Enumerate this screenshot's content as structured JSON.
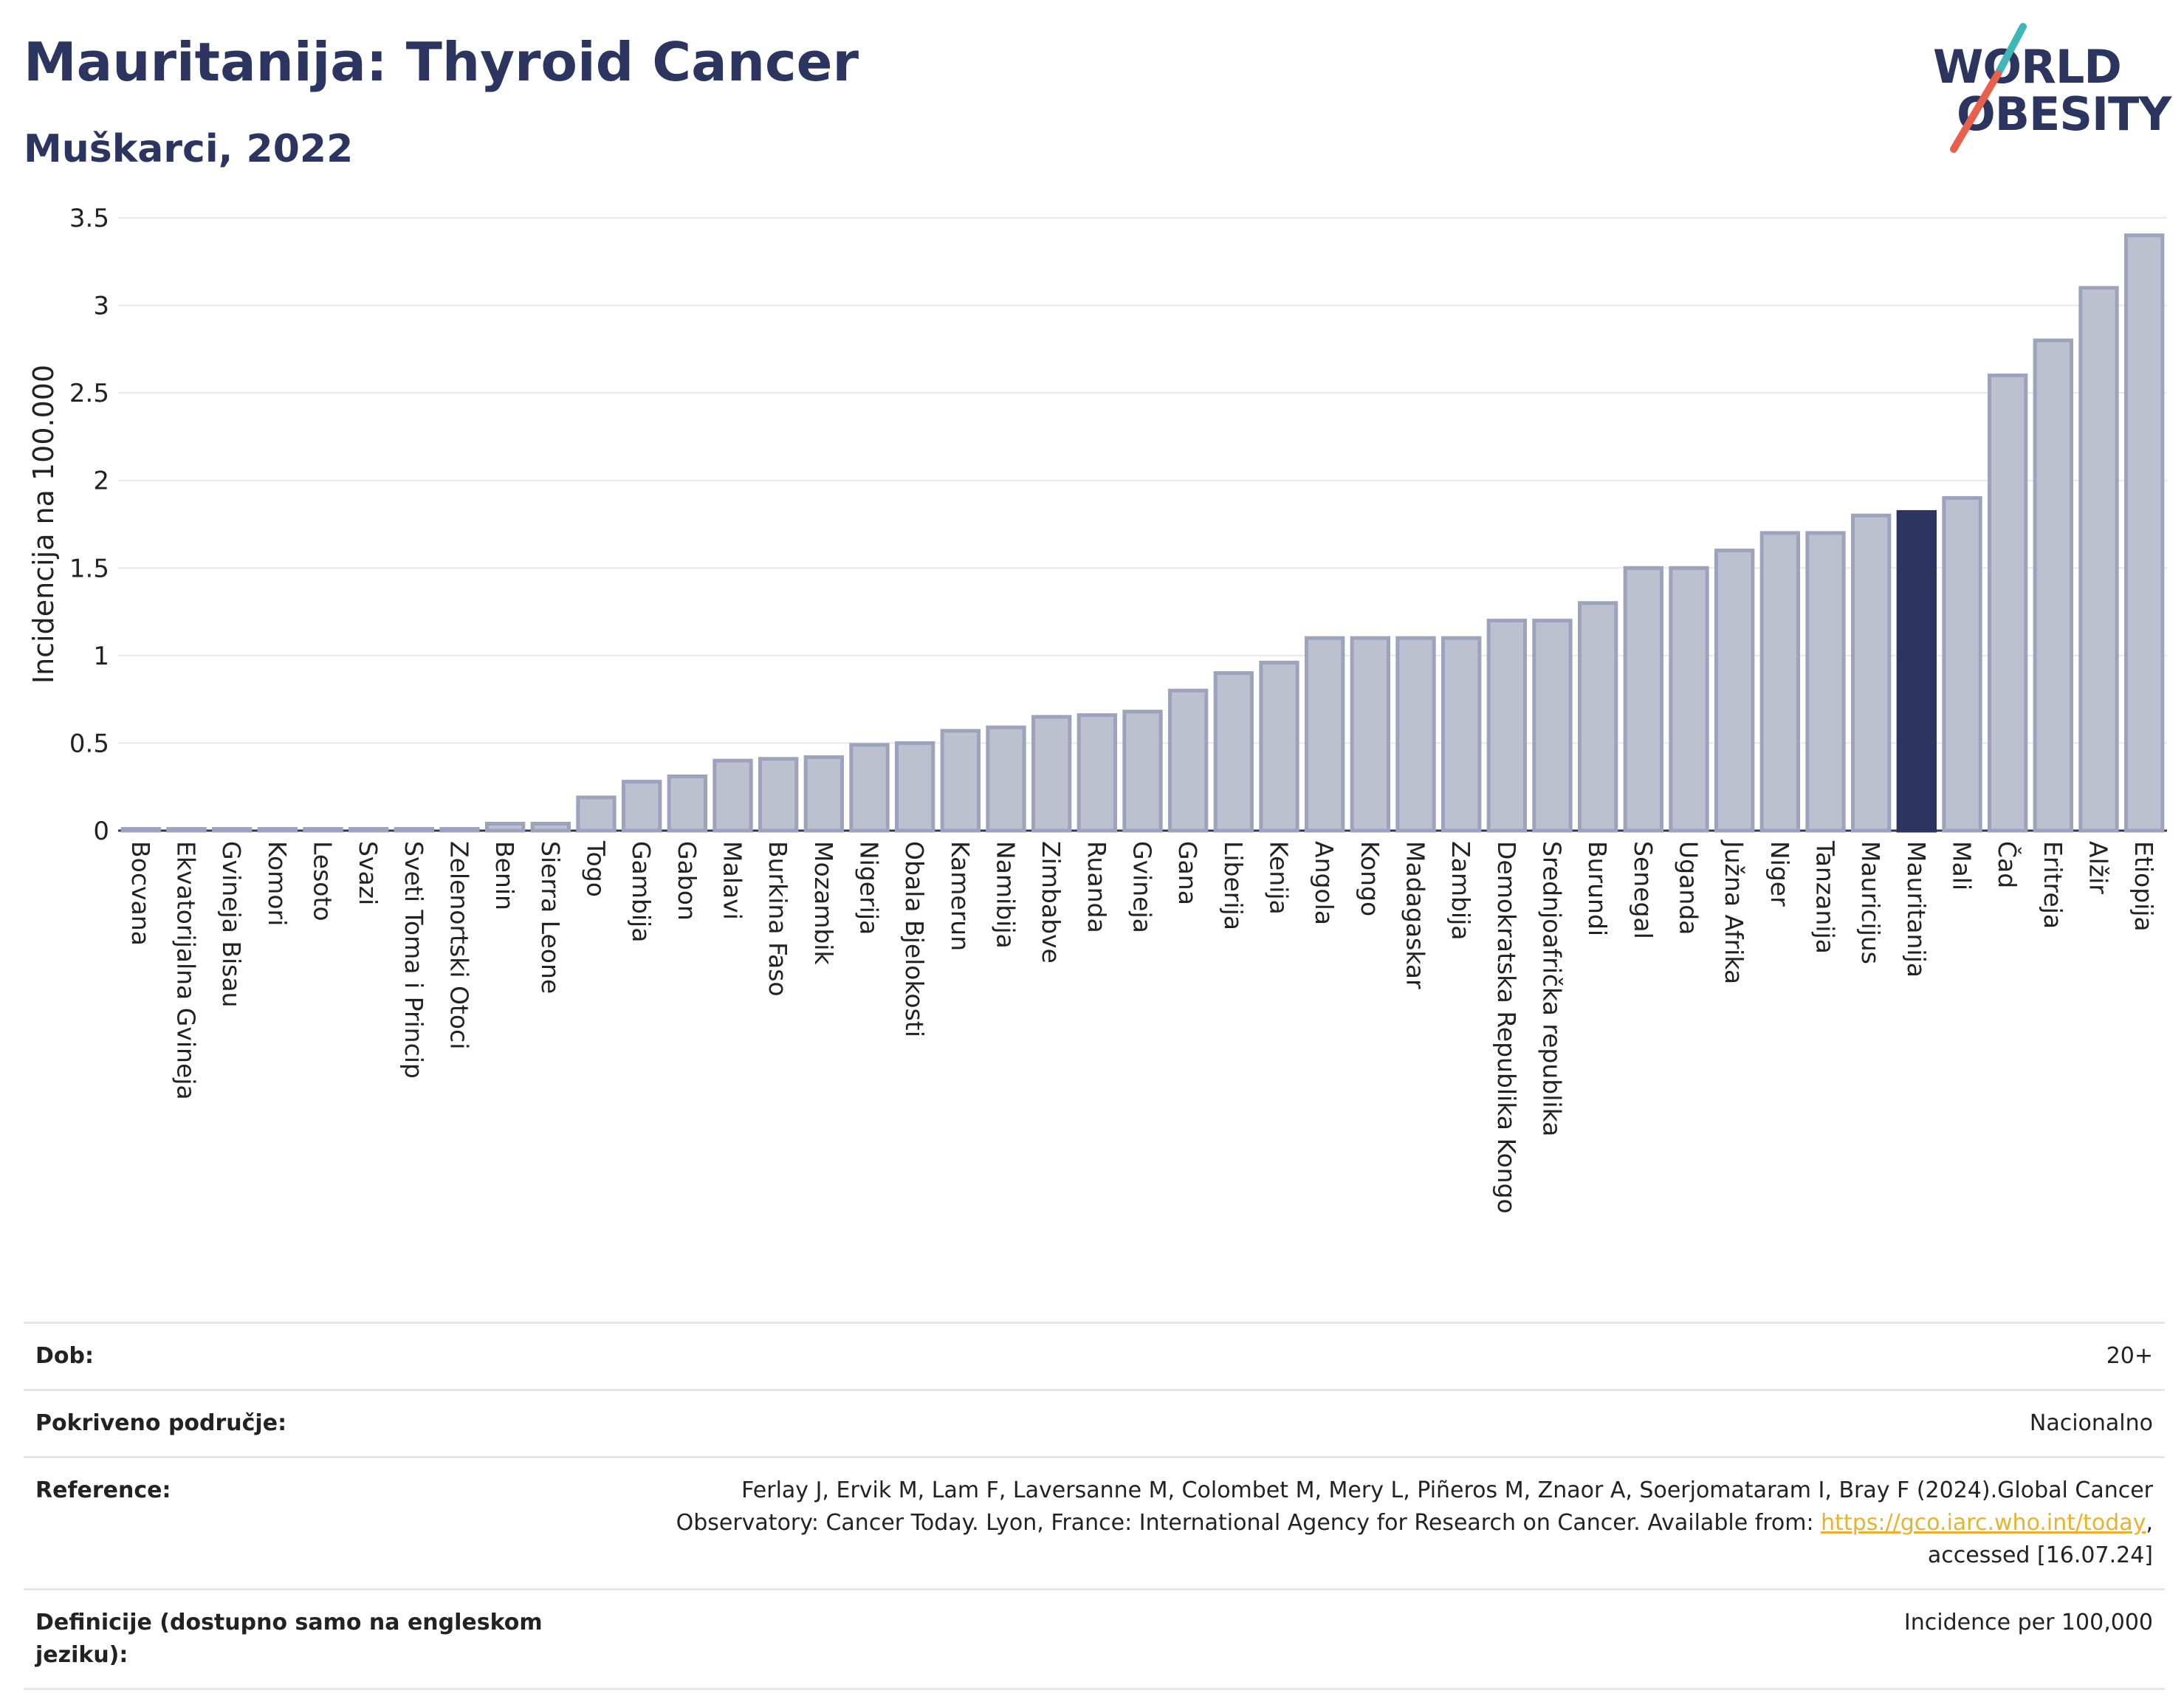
{
  "header": {
    "title": "Mauritanija: Thyroid Cancer",
    "subtitle": "Muškarci, 2022"
  },
  "logo": {
    "line1": "WORLD",
    "line2": "OBESITY"
  },
  "colors": {
    "bar": "#bcc0cf",
    "bar_border": "#9da3bd",
    "highlight": "#2b3560",
    "grid": "#e8e8e8",
    "axis": "#2b3560",
    "logo_teal": "#3fb8b5",
    "logo_coral": "#e8604c",
    "link": "#e8b32a"
  },
  "chart_data": {
    "type": "bar",
    "ylabel": "Incidencija na 100.000",
    "ylim": [
      0,
      3.5
    ],
    "yticks": [
      0,
      0.5,
      1,
      1.5,
      2,
      2.5,
      3,
      3.5
    ],
    "ytick_labels": [
      "0",
      "0.5",
      "1",
      "1.5",
      "2",
      "2.5",
      "3",
      "3.5"
    ],
    "grid": true,
    "highlight": "Mauritanija",
    "categories": [
      "Bocvana",
      "Ekvatorijalna Gvineja",
      "Gvineja Bisau",
      "Komori",
      "Lesoto",
      "Svazi",
      "Sveti Toma i Princip",
      "Zelenortski Otoci",
      "Benin",
      "Sierra Leone",
      "Togo",
      "Gambija",
      "Gabon",
      "Malavi",
      "Burkina Faso",
      "Mozambik",
      "Nigerija",
      "Obala Bjelokosti",
      "Kamerun",
      "Namibija",
      "Zimbabve",
      "Ruanda",
      "Gvineja",
      "Gana",
      "Liberija",
      "Kenija",
      "Angola",
      "Kongo",
      "Madagaskar",
      "Zambija",
      "Demokratska Republika Kongo",
      "Srednjoafrička republika",
      "Burundi",
      "Senegal",
      "Uganda",
      "Južna Afrika",
      "Niger",
      "Tanzanija",
      "Mauricijus",
      "Mauritanija",
      "Mali",
      "Čad",
      "Eritreja",
      "Alžir",
      "Etiopija"
    ],
    "values": [
      0.01,
      0.01,
      0.01,
      0.01,
      0.01,
      0.01,
      0.01,
      0.01,
      0.04,
      0.04,
      0.19,
      0.28,
      0.31,
      0.4,
      0.41,
      0.42,
      0.49,
      0.5,
      0.57,
      0.59,
      0.65,
      0.66,
      0.68,
      0.8,
      0.9,
      0.96,
      1.1,
      1.1,
      1.1,
      1.1,
      1.2,
      1.2,
      1.3,
      1.5,
      1.5,
      1.6,
      1.7,
      1.7,
      1.8,
      1.82,
      1.9,
      2.6,
      2.8,
      3.1,
      3.4
    ]
  },
  "info": {
    "rows": [
      {
        "label": "Dob:",
        "value": "20+"
      },
      {
        "label": "Pokriveno područje:",
        "value": "Nacionalno"
      },
      {
        "label": "Reference:",
        "value": ""
      },
      {
        "label": "Definicije (dostupno samo na engleskom jeziku):",
        "value": "Incidence per 100,000"
      }
    ],
    "reference_text_1": "Ferlay J, Ervik M, Lam F, Laversanne M, Colombet M, Mery L, Piñeros M, Znaor A, Soerjomataram I, Bray F (2024).Global Cancer",
    "reference_text_2": "Observatory: Cancer Today. Lyon, France: International Agency for Research on Cancer. Available from: ",
    "reference_link": "https://gco.iarc.who.int/today",
    "reference_text_3": ",",
    "reference_text_4": "accessed [16.07.24]"
  }
}
